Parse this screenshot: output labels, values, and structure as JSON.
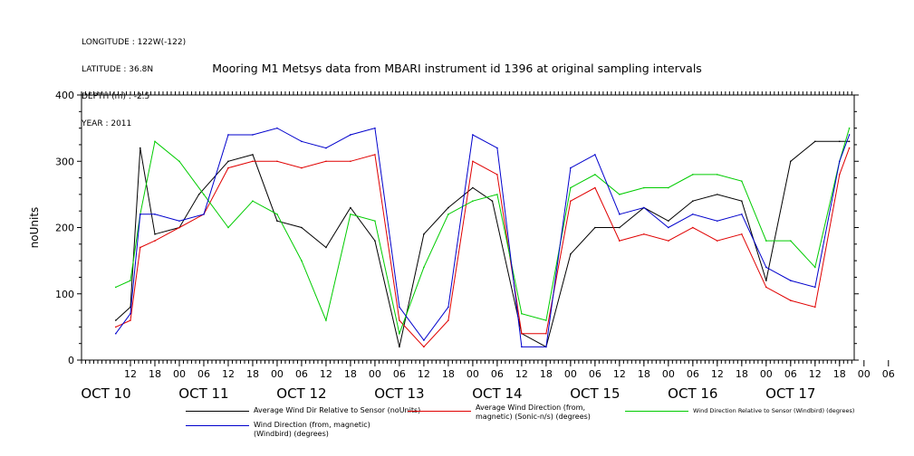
{
  "meta": {
    "longitude": "LONGITUDE : 122W(-122)",
    "latitude": "LATITUDE : 36.8N",
    "depth": "DEPTH (m) : -2.5",
    "year": "YEAR : 2011"
  },
  "chart_data": {
    "type": "line",
    "title": "Mooring M1 Metsys data from MBARI instrument id 1396 at original sampling intervals",
    "ylabel": "noUnits",
    "xlabel": "",
    "ylim": [
      0,
      400
    ],
    "yticks": [
      0,
      100,
      200,
      300,
      400
    ],
    "xlim": [
      10,
      17.9
    ],
    "hour_ticks": [
      "12",
      "18",
      "00",
      "06",
      "12",
      "18",
      "00",
      "06",
      "12",
      "18",
      "00",
      "06",
      "12",
      "18",
      "00",
      "06",
      "12",
      "18",
      "00",
      "06",
      "12",
      "18",
      "00",
      "06",
      "12",
      "18",
      "00",
      "06",
      "12",
      "18",
      "00",
      "06"
    ],
    "date_labels": [
      "OCT 10",
      "OCT 11",
      "OCT 12",
      "OCT 13",
      "OCT 14",
      "OCT 15",
      "OCT 16",
      "OCT 17"
    ],
    "grid": false,
    "legend_position": "bottom",
    "colors": {
      "black": "#000000",
      "red": "#e00000",
      "green": "#00cc00",
      "blue": "#0000cc"
    },
    "series": [
      {
        "name": "Average Wind Dir Relative to Sensor (noUnits)",
        "color": "#000000",
        "x": [
          10.35,
          10.5,
          10.6,
          10.75,
          11.0,
          11.2,
          11.5,
          11.75,
          12.0,
          12.25,
          12.5,
          12.75,
          13.0,
          13.25,
          13.5,
          13.75,
          14.0,
          14.2,
          14.5,
          14.75,
          15.0,
          15.25,
          15.5,
          15.75,
          16.0,
          16.25,
          16.5,
          16.75,
          17.0,
          17.25,
          17.5,
          17.75,
          17.85
        ],
        "y": [
          60,
          80,
          320,
          190,
          200,
          250,
          300,
          310,
          210,
          200,
          170,
          230,
          180,
          20,
          190,
          230,
          260,
          240,
          40,
          20,
          160,
          200,
          200,
          230,
          210,
          240,
          250,
          240,
          120,
          300,
          330,
          330,
          330
        ]
      },
      {
        "name": "Average Wind Direction (from, magnetic) (Sonic-n/s) (degrees)",
        "color": "#e00000",
        "x": [
          10.35,
          10.5,
          10.6,
          10.75,
          11.0,
          11.25,
          11.5,
          11.75,
          12.0,
          12.25,
          12.5,
          12.75,
          13.0,
          13.25,
          13.5,
          13.75,
          14.0,
          14.25,
          14.5,
          14.75,
          15.0,
          15.25,
          15.5,
          15.75,
          16.0,
          16.25,
          16.5,
          16.75,
          17.0,
          17.25,
          17.5,
          17.75,
          17.85
        ],
        "y": [
          50,
          60,
          170,
          180,
          200,
          220,
          290,
          300,
          300,
          290,
          300,
          300,
          310,
          60,
          20,
          60,
          300,
          280,
          40,
          40,
          240,
          260,
          180,
          190,
          180,
          200,
          180,
          190,
          110,
          90,
          80,
          280,
          320
        ]
      },
      {
        "name": "Wind Direction Relative to Sensor (Windbird) (degrees)",
        "color": "#00cc00",
        "x": [
          10.35,
          10.5,
          10.6,
          10.75,
          11.0,
          11.25,
          11.5,
          11.75,
          12.0,
          12.25,
          12.5,
          12.75,
          13.0,
          13.25,
          13.5,
          13.75,
          14.0,
          14.25,
          14.5,
          14.75,
          15.0,
          15.25,
          15.5,
          15.75,
          16.0,
          16.25,
          16.5,
          16.75,
          17.0,
          17.25,
          17.5,
          17.75,
          17.85
        ],
        "y": [
          110,
          120,
          220,
          330,
          300,
          250,
          200,
          240,
          220,
          150,
          60,
          220,
          210,
          40,
          140,
          220,
          240,
          250,
          70,
          60,
          260,
          280,
          250,
          260,
          260,
          280,
          280,
          270,
          180,
          180,
          140,
          300,
          350
        ]
      },
      {
        "name": "Wind Direction (from, magnetic) (Windbird) (degrees)",
        "color": "#0000cc",
        "x": [
          10.35,
          10.5,
          10.6,
          10.75,
          11.0,
          11.25,
          11.5,
          11.75,
          12.0,
          12.25,
          12.5,
          12.75,
          13.0,
          13.25,
          13.5,
          13.75,
          14.0,
          14.25,
          14.5,
          14.75,
          15.0,
          15.25,
          15.5,
          15.75,
          16.0,
          16.25,
          16.5,
          16.75,
          17.0,
          17.25,
          17.5,
          17.75,
          17.85
        ],
        "y": [
          40,
          70,
          220,
          220,
          210,
          220,
          340,
          340,
          350,
          330,
          320,
          340,
          350,
          80,
          30,
          80,
          340,
          320,
          20,
          20,
          290,
          310,
          220,
          230,
          200,
          220,
          210,
          220,
          140,
          120,
          110,
          300,
          340
        ]
      }
    ]
  }
}
